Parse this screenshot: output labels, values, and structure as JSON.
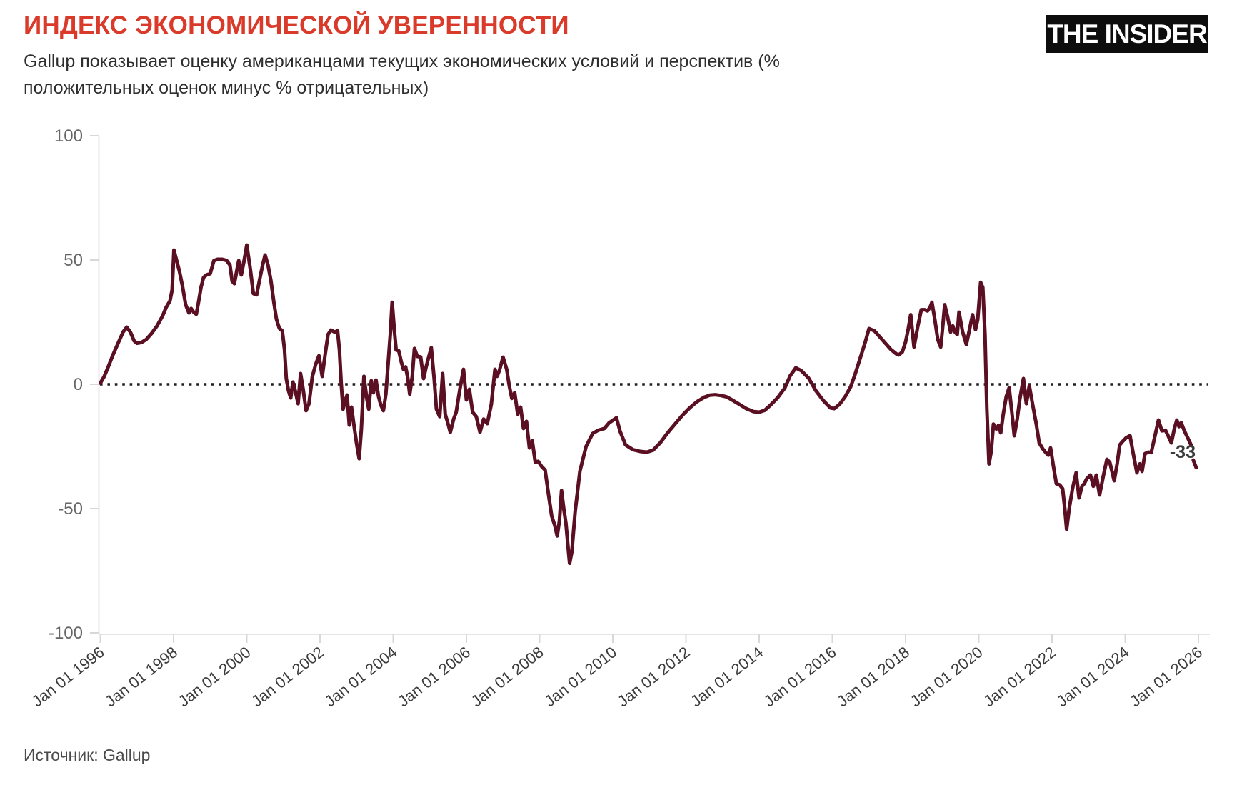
{
  "header": {
    "title": "ИНДЕКС ЭКОНОМИЧЕСКОЙ УВЕРЕННОСТИ",
    "title_color": "#d93a2a",
    "subtitle_line1": "Gallup показывает оценку американцами текущих экономических условий и перспектив (%",
    "subtitle_line2": "положительных оценок минус % отрицательных)",
    "logo_text": "THE INSIDER",
    "logo_bg": "#0d0d0d",
    "logo_fg": "#ffffff"
  },
  "footer": {
    "source": "Источник: Gallup"
  },
  "chart_data": {
    "type": "line",
    "title": "Индекс экономической уверенности (Gallup)",
    "xlabel": "",
    "ylabel": "",
    "xlim": [
      1996,
      2026
    ],
    "ylim": [
      -100,
      100
    ],
    "grid": false,
    "legend": "none",
    "zero_line": "dotted",
    "x_ticks": [
      "Jan 01 1996",
      "Jan 01 1998",
      "Jan 01 2000",
      "Jan 01 2002",
      "Jan 01 2004",
      "Jan 01 2006",
      "Jan 01 2008",
      "Jan 01 2010",
      "Jan 01 2012",
      "Jan 01 2014",
      "Jan 01 2016",
      "Jan 01 2018",
      "Jan 01 2020",
      "Jan 01 2022",
      "Jan 01 2024",
      "Jan 01 2026"
    ],
    "x_tick_years": [
      1996,
      1998,
      2000,
      2002,
      2004,
      2006,
      2008,
      2010,
      2012,
      2014,
      2016,
      2018,
      2020,
      2022,
      2024,
      2026
    ],
    "y_ticks": [
      100,
      50,
      0,
      -50,
      -100
    ],
    "last_value_label": "-33",
    "line_color": "#5a0f23",
    "zero_line_color": "#1f1f1f",
    "axis_color": "#e4e4e4",
    "tick_color": "#d8d8d8",
    "y_label_color": "#666666",
    "x_label_color": "#3b3b3b",
    "points": [
      [
        1996.0,
        0.5
      ],
      [
        1996.1,
        3
      ],
      [
        1996.2,
        6.5
      ],
      [
        1996.35,
        12
      ],
      [
        1996.5,
        17
      ],
      [
        1996.62,
        21
      ],
      [
        1996.72,
        23
      ],
      [
        1996.82,
        21
      ],
      [
        1996.92,
        17.5
      ],
      [
        1997.0,
        16.5
      ],
      [
        1997.12,
        16.8
      ],
      [
        1997.25,
        18
      ],
      [
        1997.4,
        20.5
      ],
      [
        1997.55,
        23.5
      ],
      [
        1997.7,
        27.5
      ],
      [
        1997.8,
        31
      ],
      [
        1997.9,
        33.5
      ],
      [
        1997.96,
        38
      ],
      [
        1998.01,
        54
      ],
      [
        1998.08,
        50
      ],
      [
        1998.16,
        45.5
      ],
      [
        1998.25,
        39
      ],
      [
        1998.33,
        32
      ],
      [
        1998.42,
        28.7
      ],
      [
        1998.48,
        30.5
      ],
      [
        1998.55,
        29
      ],
      [
        1998.62,
        28.2
      ],
      [
        1998.68,
        33
      ],
      [
        1998.75,
        39
      ],
      [
        1998.82,
        43
      ],
      [
        1998.9,
        44
      ],
      [
        1999.0,
        44.5
      ],
      [
        1999.1,
        49.7
      ],
      [
        1999.2,
        50.3
      ],
      [
        1999.33,
        50.3
      ],
      [
        1999.45,
        49.8
      ],
      [
        1999.54,
        48
      ],
      [
        1999.6,
        41.5
      ],
      [
        1999.66,
        40.5
      ],
      [
        1999.73,
        46
      ],
      [
        1999.78,
        49.7
      ],
      [
        1999.85,
        44
      ],
      [
        1999.93,
        50
      ],
      [
        2000.0,
        56
      ],
      [
        2000.1,
        46
      ],
      [
        2000.18,
        36.5
      ],
      [
        2000.27,
        36
      ],
      [
        2000.35,
        42
      ],
      [
        2000.43,
        47.7
      ],
      [
        2000.5,
        52
      ],
      [
        2000.58,
        48
      ],
      [
        2000.66,
        41.7
      ],
      [
        2000.74,
        33
      ],
      [
        2000.81,
        26.2
      ],
      [
        2000.89,
        22.5
      ],
      [
        2000.97,
        21.5
      ],
      [
        2001.03,
        14
      ],
      [
        2001.08,
        2.3
      ],
      [
        2001.14,
        -2.6
      ],
      [
        2001.2,
        -5.5
      ],
      [
        2001.26,
        0.9
      ],
      [
        2001.33,
        -3
      ],
      [
        2001.4,
        -7.8
      ],
      [
        2001.47,
        4.3
      ],
      [
        2001.54,
        -2
      ],
      [
        2001.62,
        -10.6
      ],
      [
        2001.7,
        -7.8
      ],
      [
        2001.79,
        3
      ],
      [
        2001.88,
        8
      ],
      [
        2001.97,
        11.5
      ],
      [
        2002.06,
        3.2
      ],
      [
        2002.14,
        12
      ],
      [
        2002.22,
        20.1
      ],
      [
        2002.3,
        21.8
      ],
      [
        2002.4,
        21
      ],
      [
        2002.48,
        21.5
      ],
      [
        2002.53,
        13.8
      ],
      [
        2002.58,
        0.3
      ],
      [
        2002.63,
        -10
      ],
      [
        2002.7,
        -6
      ],
      [
        2002.74,
        -4.3
      ],
      [
        2002.8,
        -16.4
      ],
      [
        2002.86,
        -9.2
      ],
      [
        2002.92,
        -15.8
      ],
      [
        2003.0,
        -24
      ],
      [
        2003.07,
        -29.9
      ],
      [
        2003.13,
        -18
      ],
      [
        2003.2,
        3.2
      ],
      [
        2003.27,
        -5
      ],
      [
        2003.33,
        -10
      ],
      [
        2003.4,
        1.4
      ],
      [
        2003.46,
        -3.4
      ],
      [
        2003.53,
        1.7
      ],
      [
        2003.6,
        -5
      ],
      [
        2003.66,
        -8.3
      ],
      [
        2003.73,
        -10.6
      ],
      [
        2003.8,
        -4
      ],
      [
        2003.86,
        8
      ],
      [
        2003.92,
        20
      ],
      [
        2003.97,
        33
      ],
      [
        2004.03,
        22
      ],
      [
        2004.08,
        13.8
      ],
      [
        2004.15,
        13.5
      ],
      [
        2004.22,
        9
      ],
      [
        2004.28,
        6
      ],
      [
        2004.34,
        7
      ],
      [
        2004.4,
        2.3
      ],
      [
        2004.45,
        -4
      ],
      [
        2004.52,
        3
      ],
      [
        2004.58,
        14.4
      ],
      [
        2004.66,
        11.2
      ],
      [
        2004.75,
        11
      ],
      [
        2004.83,
        2.3
      ],
      [
        2004.9,
        7
      ],
      [
        2004.98,
        11.5
      ],
      [
        2005.04,
        14.7
      ],
      [
        2005.12,
        2
      ],
      [
        2005.18,
        -10
      ],
      [
        2005.27,
        -13
      ],
      [
        2005.35,
        4.3
      ],
      [
        2005.42,
        -12
      ],
      [
        2005.5,
        -16
      ],
      [
        2005.56,
        -19.3
      ],
      [
        2005.65,
        -14
      ],
      [
        2005.72,
        -11.2
      ],
      [
        2005.82,
        -2
      ],
      [
        2005.92,
        6
      ],
      [
        2006.0,
        -6.3
      ],
      [
        2006.08,
        -2
      ],
      [
        2006.17,
        -11.2
      ],
      [
        2006.27,
        -13
      ],
      [
        2006.37,
        -19.3
      ],
      [
        2006.47,
        -14
      ],
      [
        2006.57,
        -15.8
      ],
      [
        2006.68,
        -8
      ],
      [
        2006.78,
        6
      ],
      [
        2006.84,
        3.2
      ],
      [
        2006.9,
        5.5
      ],
      [
        2007.0,
        10.9
      ],
      [
        2007.1,
        6
      ],
      [
        2007.17,
        -0.6
      ],
      [
        2007.24,
        -5.7
      ],
      [
        2007.32,
        -3.4
      ],
      [
        2007.4,
        -12
      ],
      [
        2007.48,
        -9.2
      ],
      [
        2007.56,
        -17.8
      ],
      [
        2007.64,
        -14.9
      ],
      [
        2007.72,
        -25.6
      ],
      [
        2007.8,
        -22.7
      ],
      [
        2007.88,
        -31.3
      ],
      [
        2007.96,
        -31
      ],
      [
        2008.05,
        -33
      ],
      [
        2008.15,
        -34.5
      ],
      [
        2008.25,
        -45
      ],
      [
        2008.33,
        -53
      ],
      [
        2008.42,
        -57
      ],
      [
        2008.48,
        -61
      ],
      [
        2008.54,
        -55
      ],
      [
        2008.6,
        -42.8
      ],
      [
        2008.66,
        -50
      ],
      [
        2008.72,
        -56
      ],
      [
        2008.78,
        -66
      ],
      [
        2008.82,
        -72
      ],
      [
        2008.88,
        -67.5
      ],
      [
        2008.97,
        -51.4
      ],
      [
        2009.1,
        -35
      ],
      [
        2009.27,
        -25
      ],
      [
        2009.45,
        -19.8
      ],
      [
        2009.6,
        -18.5
      ],
      [
        2009.77,
        -17.8
      ],
      [
        2009.9,
        -15.5
      ],
      [
        2010.1,
        -13.5
      ],
      [
        2010.2,
        -19
      ],
      [
        2010.35,
        -24.4
      ],
      [
        2010.55,
        -26.3
      ],
      [
        2010.75,
        -27
      ],
      [
        2010.93,
        -27.3
      ],
      [
        2011.1,
        -26.5
      ],
      [
        2011.3,
        -23.5
      ],
      [
        2011.5,
        -19.5
      ],
      [
        2011.7,
        -16
      ],
      [
        2011.9,
        -12.5
      ],
      [
        2012.1,
        -9.5
      ],
      [
        2012.3,
        -7
      ],
      [
        2012.5,
        -5.2
      ],
      [
        2012.65,
        -4.4
      ],
      [
        2012.8,
        -4.2
      ],
      [
        2012.95,
        -4.5
      ],
      [
        2013.1,
        -5
      ],
      [
        2013.25,
        -6.2
      ],
      [
        2013.45,
        -8
      ],
      [
        2013.65,
        -9.8
      ],
      [
        2013.85,
        -11
      ],
      [
        2014.0,
        -11.2
      ],
      [
        2014.15,
        -10.5
      ],
      [
        2014.3,
        -8.5
      ],
      [
        2014.5,
        -5.5
      ],
      [
        2014.7,
        -1.5
      ],
      [
        2014.85,
        3.5
      ],
      [
        2015.0,
        6.6
      ],
      [
        2015.15,
        5.5
      ],
      [
        2015.35,
        2.5
      ],
      [
        2015.55,
        -2.6
      ],
      [
        2015.75,
        -6.5
      ],
      [
        2015.95,
        -9.5
      ],
      [
        2016.05,
        -9.8
      ],
      [
        2016.2,
        -8
      ],
      [
        2016.35,
        -5
      ],
      [
        2016.5,
        -1
      ],
      [
        2016.62,
        4
      ],
      [
        2016.75,
        10
      ],
      [
        2016.9,
        17
      ],
      [
        2017.0,
        22.4
      ],
      [
        2017.15,
        21.5
      ],
      [
        2017.3,
        19
      ],
      [
        2017.45,
        16.5
      ],
      [
        2017.6,
        14
      ],
      [
        2017.75,
        12.2
      ],
      [
        2017.81,
        11.8
      ],
      [
        2017.91,
        13
      ],
      [
        2018.0,
        17
      ],
      [
        2018.07,
        22
      ],
      [
        2018.14,
        28
      ],
      [
        2018.23,
        15
      ],
      [
        2018.33,
        23
      ],
      [
        2018.43,
        30
      ],
      [
        2018.52,
        30
      ],
      [
        2018.6,
        29.5
      ],
      [
        2018.67,
        31
      ],
      [
        2018.72,
        33
      ],
      [
        2018.8,
        26
      ],
      [
        2018.88,
        18
      ],
      [
        2018.96,
        15
      ],
      [
        2019.02,
        24
      ],
      [
        2019.07,
        32
      ],
      [
        2019.15,
        27
      ],
      [
        2019.23,
        21
      ],
      [
        2019.29,
        23.5
      ],
      [
        2019.35,
        21
      ],
      [
        2019.41,
        20
      ],
      [
        2019.46,
        29
      ],
      [
        2019.56,
        21
      ],
      [
        2019.66,
        16
      ],
      [
        2019.76,
        23
      ],
      [
        2019.83,
        28
      ],
      [
        2019.91,
        22
      ],
      [
        2019.97,
        26
      ],
      [
        2020.05,
        41
      ],
      [
        2020.11,
        39
      ],
      [
        2020.17,
        20
      ],
      [
        2020.22,
        -10
      ],
      [
        2020.28,
        -32
      ],
      [
        2020.34,
        -27
      ],
      [
        2020.4,
        -16
      ],
      [
        2020.48,
        -18
      ],
      [
        2020.54,
        -16.5
      ],
      [
        2020.6,
        -19.5
      ],
      [
        2020.67,
        -12
      ],
      [
        2020.75,
        -5
      ],
      [
        2020.83,
        -1.4
      ],
      [
        2020.91,
        -12
      ],
      [
        2020.97,
        -20.7
      ],
      [
        2021.05,
        -14
      ],
      [
        2021.12,
        -6
      ],
      [
        2021.22,
        2.3
      ],
      [
        2021.3,
        -7.8
      ],
      [
        2021.38,
        -0.6
      ],
      [
        2021.47,
        -8
      ],
      [
        2021.57,
        -16
      ],
      [
        2021.65,
        -23.6
      ],
      [
        2021.75,
        -26
      ],
      [
        2021.82,
        -27.3
      ],
      [
        2021.9,
        -28.5
      ],
      [
        2021.96,
        -25.6
      ],
      [
        2022.04,
        -33
      ],
      [
        2022.12,
        -40
      ],
      [
        2022.21,
        -40.5
      ],
      [
        2022.29,
        -42
      ],
      [
        2022.35,
        -50
      ],
      [
        2022.4,
        -58.3
      ],
      [
        2022.47,
        -50
      ],
      [
        2022.56,
        -42
      ],
      [
        2022.66,
        -35.6
      ],
      [
        2022.74,
        -45.7
      ],
      [
        2022.82,
        -41
      ],
      [
        2022.88,
        -40
      ],
      [
        2022.95,
        -38
      ],
      [
        2023.05,
        -36.5
      ],
      [
        2023.13,
        -41
      ],
      [
        2023.21,
        -36.5
      ],
      [
        2023.3,
        -44.5
      ],
      [
        2023.4,
        -37
      ],
      [
        2023.5,
        -30.2
      ],
      [
        2023.58,
        -31.5
      ],
      [
        2023.7,
        -38.8
      ],
      [
        2023.78,
        -32
      ],
      [
        2023.85,
        -24.4
      ],
      [
        2023.93,
        -23
      ],
      [
        2024.03,
        -21.5
      ],
      [
        2024.13,
        -20.7
      ],
      [
        2024.22,
        -28
      ],
      [
        2024.32,
        -35.6
      ],
      [
        2024.4,
        -32
      ],
      [
        2024.46,
        -35
      ],
      [
        2024.54,
        -27.9
      ],
      [
        2024.63,
        -27.3
      ],
      [
        2024.71,
        -27.5
      ],
      [
        2024.81,
        -21
      ],
      [
        2024.91,
        -14.4
      ],
      [
        2025.0,
        -18.7
      ],
      [
        2025.1,
        -18.5
      ],
      [
        2025.18,
        -21
      ],
      [
        2025.26,
        -23.6
      ],
      [
        2025.34,
        -18
      ],
      [
        2025.41,
        -14.4
      ],
      [
        2025.47,
        -17
      ],
      [
        2025.53,
        -15.5
      ],
      [
        2025.61,
        -18.5
      ],
      [
        2025.71,
        -21.6
      ],
      [
        2025.8,
        -24.4
      ]
    ],
    "tail_points": [
      [
        2025.86,
        -30.5
      ],
      [
        2025.94,
        -33.5
      ]
    ]
  }
}
